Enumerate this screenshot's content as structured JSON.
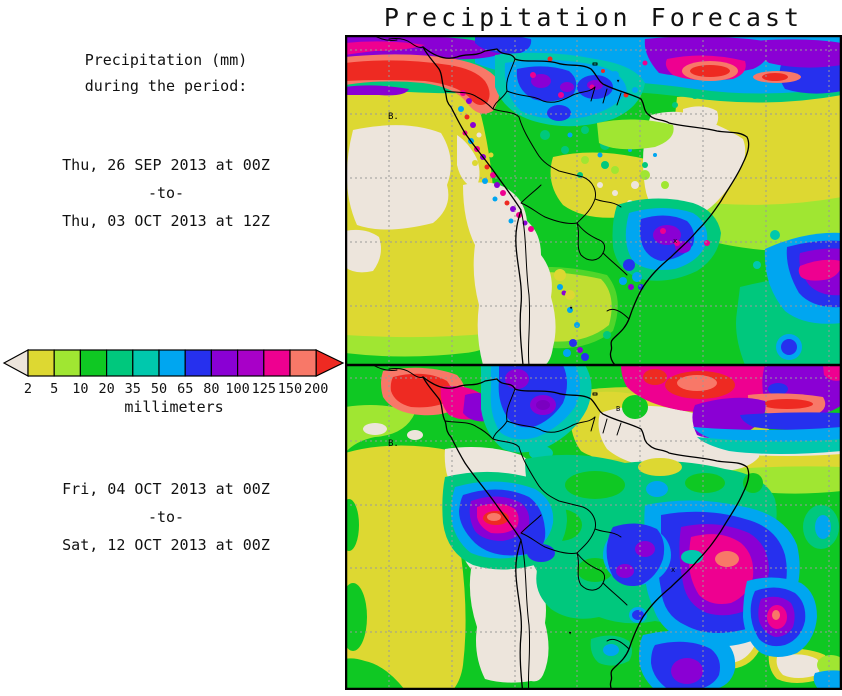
{
  "title": "Precipitation Forecast",
  "sidebar": {
    "heading_line1": "Precipitation (mm)",
    "heading_line2": "during the period:",
    "period1": {
      "start": "Thu, 26 SEP 2013 at 00Z",
      "separator": "-to-",
      "end": "Thu, 03 OCT 2013 at 12Z"
    },
    "period2": {
      "start": "Fri, 04 OCT 2013 at 00Z",
      "separator": "-to-",
      "end": "Sat, 12 OCT 2013 at 00Z"
    }
  },
  "legend": {
    "unit_label": "millimeters",
    "tick_values": [
      "2",
      "5",
      "10",
      "20",
      "35",
      "50",
      "65",
      "80",
      "100",
      "125",
      "150",
      "200"
    ],
    "box_colors": [
      "#DDD832",
      "#A0E632",
      "#0FC823",
      "#00C87D",
      "#00C8AD",
      "#00A6F0",
      "#2630EE",
      "#8A00D4",
      "#A800C8",
      "#EE0090",
      "#F87868"
    ],
    "below_min_color": "#EDE5DC",
    "above_max_color": "#EE2A22"
  },
  "map": {
    "grid_color": "#9A9A9A",
    "panel_top_marker": "B.",
    "panel_bottom_marker": "B."
  }
}
